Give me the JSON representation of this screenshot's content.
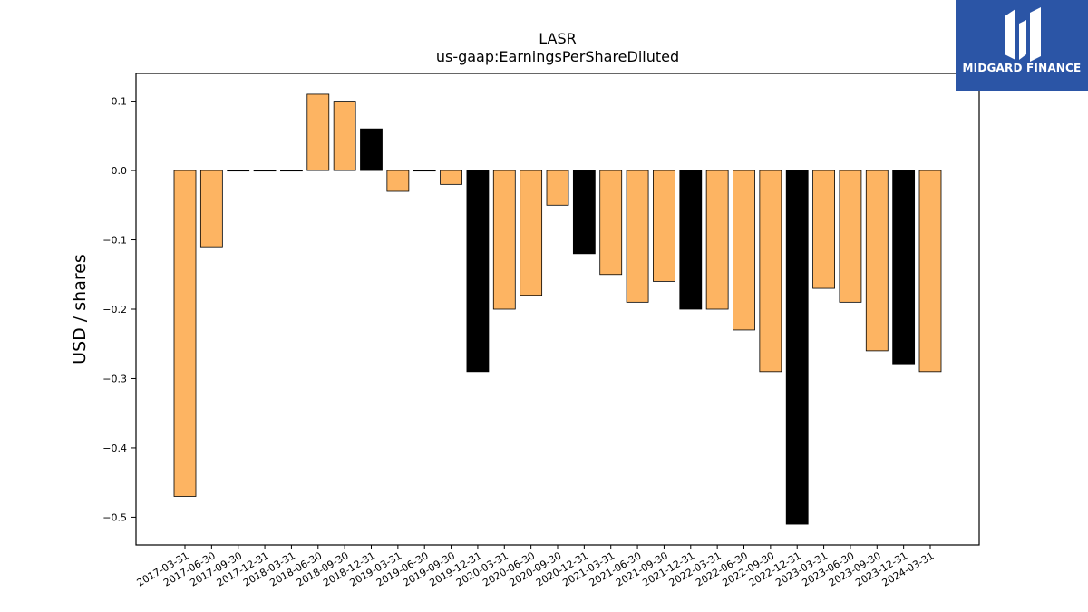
{
  "chart_data": {
    "type": "bar",
    "title": "LASR",
    "subtitle": "us-gaap:EarningsPerShareDiluted",
    "xlabel": "",
    "ylabel": "USD / shares",
    "ylim": [
      -0.54,
      0.14
    ],
    "yticks": [
      0.1,
      0.0,
      -0.1,
      -0.2,
      -0.3,
      -0.4,
      -0.5
    ],
    "ytick_labels": [
      "0.1",
      "0.0",
      "−0.1",
      "−0.2",
      "−0.3",
      "−0.4",
      "−0.5"
    ],
    "grid": false,
    "legend": "none",
    "colors": {
      "quarter": "#fdb462",
      "year_end": "#000000",
      "edge": "#000000",
      "axis": "#000000"
    },
    "categories": [
      "2017-03-31",
      "2017-06-30",
      "2017-09-30",
      "2017-12-31",
      "2018-03-31",
      "2018-06-30",
      "2018-09-30",
      "2018-12-31",
      "2019-03-31",
      "2019-06-30",
      "2019-09-30",
      "2019-12-31",
      "2020-03-31",
      "2020-06-30",
      "2020-09-30",
      "2020-12-31",
      "2021-03-31",
      "2021-06-30",
      "2021-09-30",
      "2021-12-31",
      "2022-03-31",
      "2022-06-30",
      "2022-09-30",
      "2022-12-31",
      "2023-03-31",
      "2023-06-30",
      "2023-09-30",
      "2023-12-31",
      "2024-03-31"
    ],
    "values": [
      -0.47,
      -0.11,
      0.0,
      0.0,
      0.0,
      0.11,
      0.1,
      0.06,
      -0.03,
      0.0,
      -0.02,
      -0.29,
      -0.2,
      -0.18,
      -0.05,
      -0.12,
      -0.15,
      -0.19,
      -0.16,
      -0.2,
      -0.2,
      -0.23,
      -0.29,
      -0.51,
      -0.17,
      -0.19,
      -0.26,
      -0.28,
      -0.29
    ],
    "year_end_flags": [
      false,
      false,
      false,
      false,
      false,
      false,
      false,
      true,
      false,
      false,
      false,
      true,
      false,
      false,
      false,
      true,
      false,
      false,
      false,
      true,
      false,
      false,
      false,
      true,
      false,
      false,
      false,
      true,
      false
    ]
  },
  "logo": {
    "brand_text": "MIDGARD FINANCE",
    "background": "#2b55a6",
    "icon": "midgard-logo-icon"
  }
}
